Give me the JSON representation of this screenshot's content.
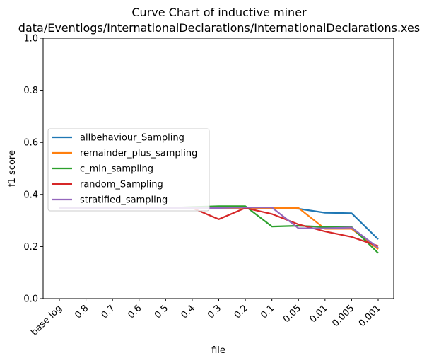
{
  "chart_data": {
    "type": "line",
    "title": "Curve Chart of inductive miner",
    "subtitle": "data/Eventlogs/InternationalDeclarations/InternationalDeclarations.xes",
    "xlabel": "file",
    "ylabel": "f1 score",
    "ylim": [
      0,
      1.0
    ],
    "yticks": [
      "0.0",
      "0.2",
      "0.4",
      "0.6",
      "0.8",
      "1.0"
    ],
    "categories": [
      "base log",
      "0.8",
      "0.7",
      "0.6",
      "0.5",
      "0.4",
      "0.3",
      "0.2",
      "0.1",
      "0.05",
      "0.01",
      "0.005",
      "0.001"
    ],
    "legend_position": "center-left",
    "grid": false,
    "series": [
      {
        "name": "allbehaviour_Sampling",
        "color": "#1f77b4",
        "values": [
          0.348,
          0.348,
          0.348,
          0.348,
          0.348,
          0.348,
          0.348,
          0.348,
          0.348,
          0.345,
          0.33,
          0.328,
          0.228
        ]
      },
      {
        "name": "remainder_plus_sampling",
        "color": "#ff7f0e",
        "values": [
          0.348,
          0.348,
          0.348,
          0.348,
          0.348,
          0.348,
          0.348,
          0.348,
          0.348,
          0.348,
          0.268,
          0.268,
          0.19
        ]
      },
      {
        "name": "c_min_sampling",
        "color": "#2ca02c",
        "values": [
          0.348,
          0.348,
          0.348,
          0.348,
          0.348,
          0.352,
          0.355,
          0.355,
          0.277,
          0.28,
          0.275,
          0.275,
          0.175
        ]
      },
      {
        "name": "random_Sampling",
        "color": "#d62728",
        "values": [
          0.348,
          0.348,
          0.348,
          0.348,
          0.348,
          0.348,
          0.305,
          0.348,
          0.325,
          0.285,
          0.258,
          0.237,
          0.202
        ]
      },
      {
        "name": "stratified_sampling",
        "color": "#9467bd",
        "values": [
          0.348,
          0.348,
          0.348,
          0.348,
          0.348,
          0.348,
          0.348,
          0.35,
          0.35,
          0.27,
          0.27,
          0.273,
          0.195
        ]
      }
    ]
  }
}
